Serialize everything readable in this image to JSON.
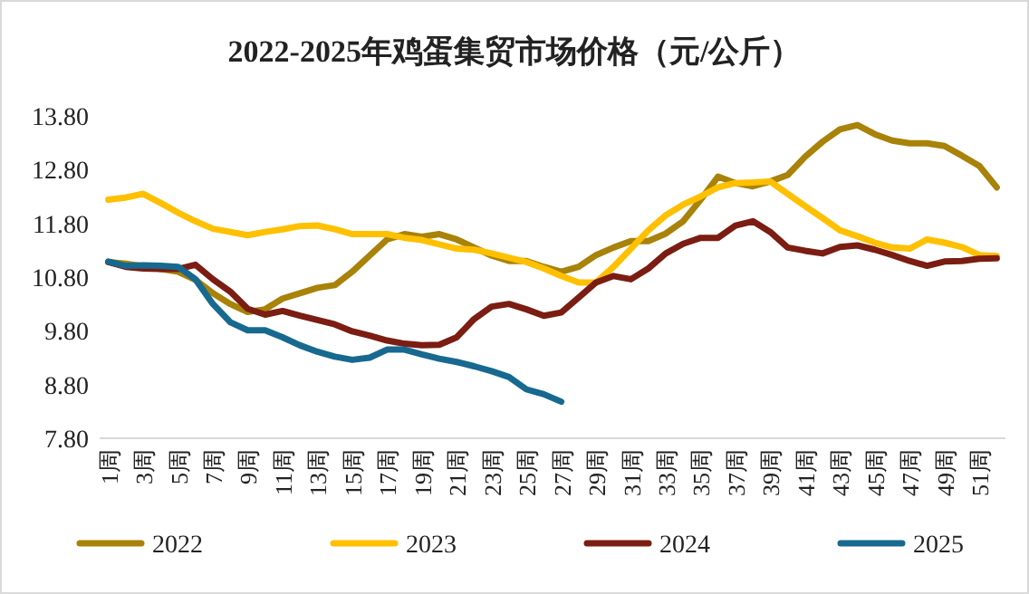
{
  "chart_data": {
    "type": "line",
    "title": "2022-2025年鸡蛋集贸市场价格（元/公斤）",
    "categories": [
      "1周",
      null,
      "3周",
      null,
      "5周",
      null,
      "7周",
      null,
      "9周",
      null,
      "11周",
      null,
      "13周",
      null,
      "15周",
      null,
      "17周",
      null,
      "19周",
      null,
      "21周",
      null,
      "23周",
      null,
      "25周",
      null,
      "27周",
      null,
      "29周",
      null,
      "31周",
      null,
      "33周",
      null,
      "35周",
      null,
      "37周",
      null,
      "39周",
      null,
      "41周",
      null,
      "43周",
      null,
      "45周",
      null,
      "47周",
      null,
      "49周",
      null,
      "51周",
      null
    ],
    "ylim": [
      7.8,
      13.8
    ],
    "yticks": [
      {
        "value": 7.8,
        "label": "7.80"
      },
      {
        "value": 8.8,
        "label": "8.80"
      },
      {
        "value": 9.8,
        "label": "9.80"
      },
      {
        "value": 10.8,
        "label": "10.80"
      },
      {
        "value": 11.8,
        "label": "11.80"
      },
      {
        "value": 12.8,
        "label": "12.80"
      },
      {
        "value": 13.8,
        "label": "13.80"
      }
    ],
    "legend": "bottom",
    "series": [
      {
        "name": "2022",
        "color": "#a88209",
        "values": [
          11.08,
          11.05,
          11.0,
          10.95,
          10.9,
          10.75,
          10.5,
          10.3,
          10.15,
          10.2,
          10.4,
          10.5,
          10.6,
          10.65,
          10.9,
          11.2,
          11.5,
          11.6,
          11.55,
          11.6,
          11.5,
          11.35,
          11.2,
          11.1,
          11.1,
          10.99,
          10.9,
          10.99,
          11.21,
          11.35,
          11.47,
          11.47,
          11.61,
          11.84,
          12.24,
          12.67,
          12.55,
          12.49,
          12.58,
          12.7,
          13.04,
          13.32,
          13.55,
          13.63,
          13.46,
          13.34,
          13.29,
          13.29,
          13.24,
          13.06,
          12.87,
          12.47
        ]
      },
      {
        "name": "2023",
        "color": "#ffc000",
        "values": [
          12.24,
          12.28,
          12.35,
          12.18,
          12.0,
          11.84,
          11.7,
          11.64,
          11.58,
          11.64,
          11.69,
          11.75,
          11.76,
          11.69,
          11.6,
          11.6,
          11.6,
          11.53,
          11.49,
          11.41,
          11.33,
          11.31,
          11.24,
          11.16,
          11.08,
          10.96,
          10.82,
          10.7,
          10.7,
          10.99,
          11.33,
          11.67,
          11.95,
          12.15,
          12.3,
          12.47,
          12.55,
          12.56,
          12.58,
          12.35,
          12.12,
          11.9,
          11.67,
          11.56,
          11.44,
          11.35,
          11.33,
          11.5,
          11.44,
          11.36,
          11.21,
          11.19
        ]
      },
      {
        "name": "2024",
        "color": "#7b1d12",
        "values": [
          11.08,
          10.99,
          10.96,
          10.95,
          10.95,
          11.03,
          10.76,
          10.53,
          10.21,
          10.1,
          10.17,
          10.08,
          10.0,
          9.92,
          9.79,
          9.71,
          9.62,
          9.56,
          9.53,
          9.54,
          9.68,
          10.02,
          10.25,
          10.3,
          10.2,
          10.08,
          10.14,
          10.42,
          10.7,
          10.82,
          10.76,
          10.96,
          11.24,
          11.42,
          11.53,
          11.53,
          11.76,
          11.84,
          11.64,
          11.35,
          11.29,
          11.24,
          11.36,
          11.39,
          11.31,
          11.21,
          11.1,
          11.01,
          11.09,
          11.1,
          11.14,
          11.15
        ]
      },
      {
        "name": "2025",
        "color": "#17698f",
        "values": [
          11.09,
          11.01,
          11.02,
          11.01,
          10.99,
          10.76,
          10.3,
          9.96,
          9.81,
          9.81,
          9.68,
          9.53,
          9.41,
          9.32,
          9.26,
          9.3,
          9.45,
          9.45,
          9.36,
          9.28,
          9.22,
          9.14,
          9.05,
          8.94,
          8.71,
          8.62,
          8.48,
          null,
          null,
          null,
          null,
          null,
          null,
          null,
          null,
          null,
          null,
          null,
          null,
          null,
          null,
          null,
          null,
          null,
          null,
          null,
          null,
          null,
          null,
          null,
          null,
          null
        ]
      }
    ]
  }
}
